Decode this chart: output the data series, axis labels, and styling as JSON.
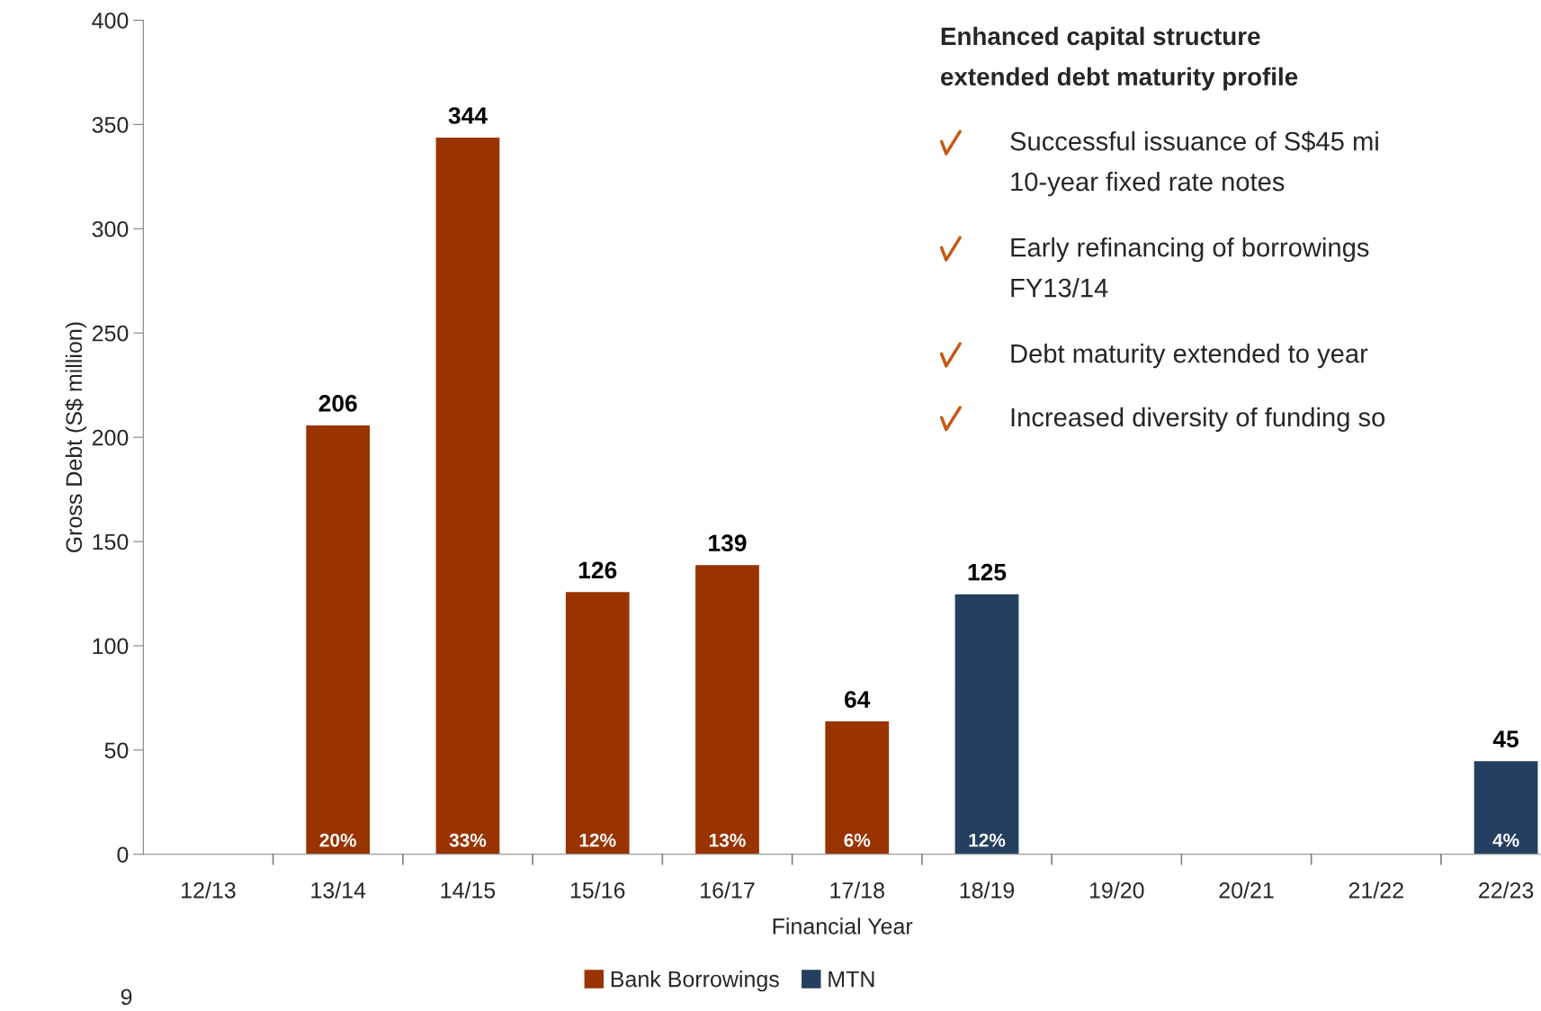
{
  "chart_data": {
    "type": "bar",
    "xlabel": "Financial Year",
    "ylabel": "Gross Debt (S$ million)",
    "categories": [
      "12/13",
      "13/14",
      "14/15",
      "15/16",
      "16/17",
      "17/18",
      "18/19",
      "19/20",
      "20/21",
      "21/22",
      "22/23"
    ],
    "series": [
      {
        "name": "Bank Borrowings",
        "color": "#993300",
        "values": [
          null,
          206,
          344,
          126,
          139,
          64,
          null,
          null,
          null,
          null,
          null
        ]
      },
      {
        "name": "MTN",
        "color": "#243f60",
        "values": [
          null,
          null,
          null,
          null,
          null,
          null,
          125,
          null,
          null,
          null,
          45
        ]
      }
    ],
    "data_labels": true,
    "ylim": [
      0,
      400
    ],
    "yticks": [
      0,
      50,
      100,
      150,
      200,
      250,
      300,
      350,
      400
    ],
    "grid": false,
    "legend": "bottom",
    "annotations": [
      {
        "text": "20%",
        "x": "13/14",
        "y": 0
      },
      {
        "text": "33%",
        "x": "14/15",
        "y": 0
      },
      {
        "text": "12%",
        "x": "15/16",
        "y": 0
      },
      {
        "text": "13%",
        "x": "16/17",
        "y": 0
      },
      {
        "text": "6%",
        "x": "17/18",
        "y": 0
      },
      {
        "text": "12%",
        "x": "18/19",
        "y": 0
      },
      {
        "text": "4%",
        "x": "22/23",
        "y": 0
      },
      "Enhanced capital structure",
      "extended debt maturity profile",
      "Successful issuance of S$45 mi",
      "10-year fixed rate notes",
      "Early refinancing of borrowings",
      "FY13/14",
      "Debt maturity extended to year",
      "Increased diversity of funding so",
      "9"
    ]
  }
}
